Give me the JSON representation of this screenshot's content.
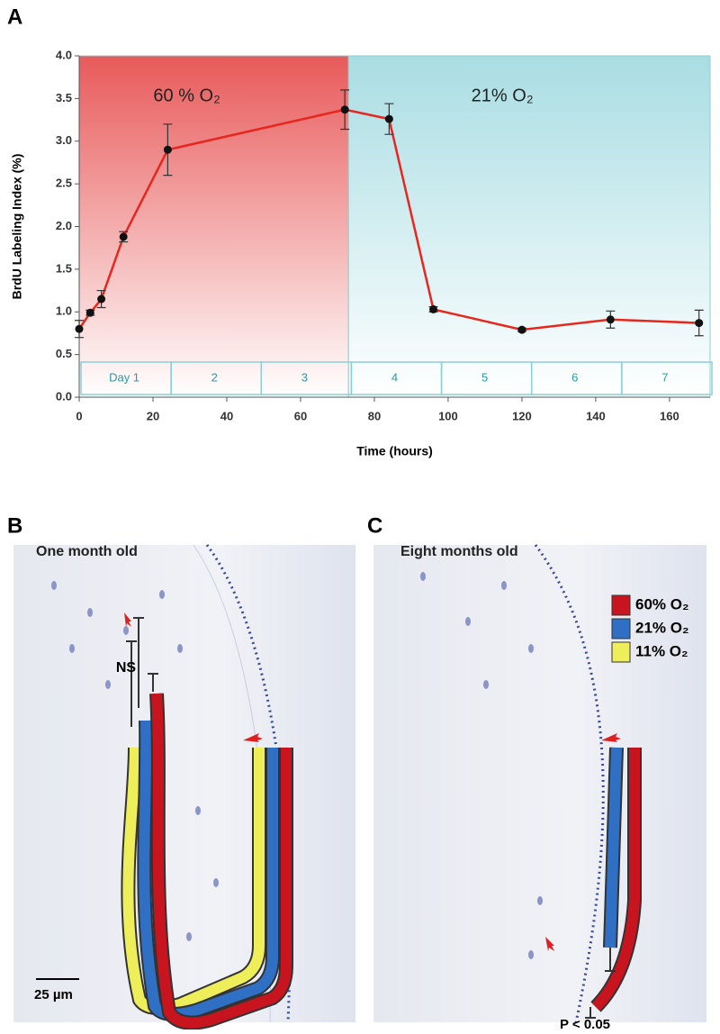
{
  "chart_data": {
    "type": "line",
    "panel_label": "A",
    "x_label": "Time (hours)",
    "y_label": "BrdU Labeling Index (%)",
    "x": [
      0,
      3,
      6,
      12,
      24,
      72,
      84,
      96,
      120,
      144,
      168
    ],
    "series": [
      {
        "color": "#e8261e",
        "values": [
          0.8,
          0.99,
          1.15,
          1.88,
          2.9,
          3.37,
          3.26,
          1.03,
          0.79,
          0.91,
          0.87
        ],
        "errors": [
          0.1,
          0.03,
          0.1,
          0.06,
          0.3,
          0.23,
          0.18,
          0.03,
          0.02,
          0.1,
          0.15
        ]
      }
    ],
    "xlim": [
      0,
      171
    ],
    "ylim": [
      0,
      4
    ],
    "xticks": [
      0,
      20,
      40,
      60,
      80,
      100,
      120,
      140,
      160
    ],
    "yticks": [
      {
        "value": 0,
        "label": "0.0"
      },
      0.5,
      {
        "value": 1,
        "label": "1.0"
      },
      1.5,
      {
        "value": 2,
        "label": "2.0"
      },
      2.5,
      {
        "value": 3,
        "label": "3.0"
      },
      3.5,
      {
        "value": 4,
        "label": "4.0"
      }
    ],
    "regions": [
      {
        "label": "60 % O₂",
        "from": 0,
        "to": 73,
        "color": "#e85a5a"
      },
      {
        "label": "21% O₂",
        "from": 73,
        "to": 171,
        "color": "#a9dde3"
      }
    ],
    "days": [
      "Day 1",
      "2",
      "3",
      "4",
      "5",
      "6",
      "7"
    ]
  },
  "panel_b": {
    "label": "B",
    "title": "One month old",
    "annotation": "NS",
    "scale_bar": "25 µm"
  },
  "panel_c": {
    "label": "C",
    "title": "Eight months old",
    "annotation": "P < 0.05",
    "legend": [
      {
        "name": "60% O₂",
        "color": "#c8141e"
      },
      {
        "name": "21% O₂",
        "color": "#2f6fc4"
      },
      {
        "name": "11% O₂",
        "color": "#eeee5a"
      }
    ]
  }
}
